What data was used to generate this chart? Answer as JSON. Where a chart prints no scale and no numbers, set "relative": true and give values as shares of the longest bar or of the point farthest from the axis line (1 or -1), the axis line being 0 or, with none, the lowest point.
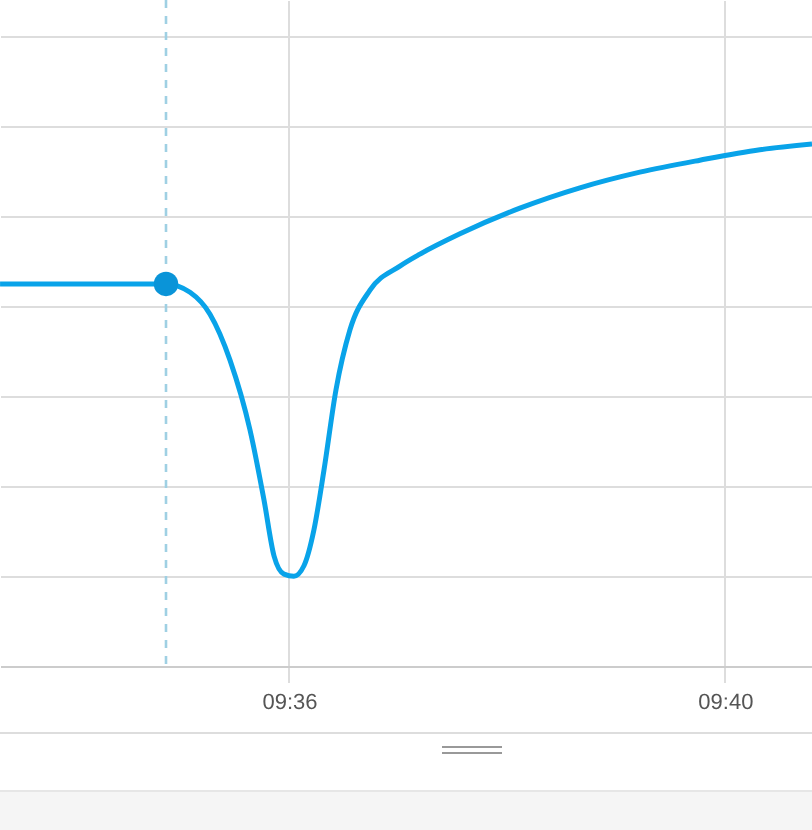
{
  "chart_data": {
    "type": "line",
    "relative": true,
    "x": [
      9.55581,
      9.58119,
      9.58486,
      9.58792,
      9.59098,
      9.59404,
      9.59618,
      9.59771,
      9.59924,
      9.60076,
      9.60229,
      9.60382,
      9.60535,
      9.60719,
      9.60933,
      9.61239,
      9.61697,
      9.62003,
      9.62615,
      9.63532,
      9.6445,
      9.65367,
      9.66284,
      9.67202,
      9.68
    ],
    "xlim": [
      9.5558,
      9.68
    ],
    "xticks": [
      {
        "value": 9.6,
        "label": "09:36"
      },
      {
        "value": 9.66667,
        "label": "09:40"
      }
    ],
    "grid": true,
    "series": [
      {
        "color": "#09a3e9",
        "values": [
          0.732,
          0.732,
          0.716,
          0.674,
          0.586,
          0.452,
          0.318,
          0.211,
          0.176,
          0.172,
          0.192,
          0.261,
          0.375,
          0.529,
          0.644,
          0.72,
          0.766,
          0.789,
          0.828,
          0.877,
          0.916,
          0.946,
          0.969,
          0.989,
          1
        ]
      },
      {
        "type": "scatter",
        "x": [
          9.58119
        ],
        "color": "#0a94d8",
        "marker": "circle",
        "values": [
          0.732
        ]
      }
    ],
    "ref_lines": [
      {
        "axis": "x",
        "value": 9.58119,
        "color": "#9fd0e3",
        "line_style": "dashed"
      }
    ]
  }
}
